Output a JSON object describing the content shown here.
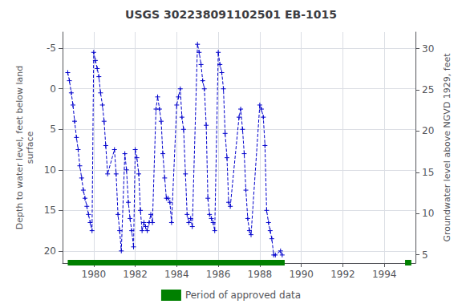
{
  "chart_data": {
    "type": "line",
    "title": "USGS 302238091102501 EB-1015",
    "ylabel": "Depth to water level, feet below land\nsurface",
    "y2label": "Groundwater level above NGVD 1929, feet",
    "xlim": [
      1978.5,
      1995.5
    ],
    "ylim": [
      21.5,
      -7.0
    ],
    "y2lim": [
      4.0,
      32.0
    ],
    "xticks": [
      1980,
      1982,
      1984,
      1986,
      1988,
      1990,
      1992,
      1994
    ],
    "yticks": [
      -5,
      0,
      5,
      10,
      15,
      20
    ],
    "y2ticks": [
      5,
      10,
      15,
      20,
      25,
      30
    ],
    "grid": true,
    "legend": "bottom",
    "x": [
      1978.75,
      1978.83,
      1978.92,
      1979.0,
      1979.08,
      1979.17,
      1979.25,
      1979.33,
      1979.42,
      1979.5,
      1979.58,
      1979.67,
      1979.75,
      1979.83,
      1979.92,
      1980.0,
      1980.08,
      1980.17,
      1980.25,
      1980.33,
      1980.42,
      1980.5,
      1980.58,
      1980.67,
      1981.0,
      1981.08,
      1981.17,
      1981.25,
      1981.33,
      1981.5,
      1981.58,
      1981.67,
      1981.75,
      1981.83,
      1981.92,
      1982.0,
      1982.08,
      1982.17,
      1982.25,
      1982.33,
      1982.42,
      1982.5,
      1982.58,
      1982.67,
      1982.75,
      1982.83,
      1983.0,
      1983.08,
      1983.17,
      1983.25,
      1983.33,
      1983.42,
      1983.5,
      1983.58,
      1983.67,
      1983.75,
      1984.0,
      1984.08,
      1984.17,
      1984.25,
      1984.33,
      1984.42,
      1984.5,
      1984.58,
      1984.67,
      1984.75,
      1985.0,
      1985.08,
      1985.17,
      1985.25,
      1985.33,
      1985.42,
      1985.5,
      1985.58,
      1985.67,
      1985.75,
      1985.83,
      1986.0,
      1986.08,
      1986.17,
      1986.25,
      1986.33,
      1986.42,
      1986.5,
      1986.58,
      1987.0,
      1987.08,
      1987.17,
      1987.25,
      1987.33,
      1987.42,
      1987.5,
      1987.58,
      1988.0,
      1988.08,
      1988.17,
      1988.25,
      1988.33,
      1988.42,
      1988.5,
      1988.58,
      1988.67,
      1988.75,
      1989.0,
      1989.08
    ],
    "series": [
      {
        "color": "#0000cc",
        "marker": "+",
        "line_style": "dashed",
        "values": [
          -2.0,
          -1.0,
          0.5,
          2.0,
          4.0,
          6.0,
          7.5,
          9.5,
          11.0,
          12.5,
          13.5,
          14.5,
          15.5,
          16.5,
          17.5,
          -4.5,
          -3.5,
          -2.5,
          -1.5,
          0.5,
          2.0,
          4.0,
          7.0,
          10.5,
          7.5,
          10.5,
          15.5,
          17.5,
          20.0,
          8.0,
          10.0,
          14.0,
          16.0,
          17.5,
          19.5,
          7.5,
          8.5,
          10.5,
          15.0,
          17.5,
          16.5,
          17.0,
          17.5,
          16.5,
          15.5,
          16.5,
          2.5,
          1.0,
          2.5,
          4.0,
          8.0,
          11.0,
          13.5,
          13.5,
          14.0,
          16.5,
          2.0,
          1.0,
          0.0,
          3.5,
          5.0,
          10.5,
          15.5,
          16.5,
          16.0,
          17.0,
          -5.5,
          -4.5,
          -3.0,
          -1.0,
          0.0,
          4.5,
          13.5,
          15.5,
          16.0,
          16.5,
          17.5,
          -4.5,
          -3.0,
          -2.0,
          0.0,
          5.5,
          8.5,
          14.0,
          14.5,
          3.5,
          2.5,
          5.0,
          8.0,
          12.5,
          16.0,
          17.5,
          18.0,
          2.0,
          2.5,
          3.5,
          7.0,
          15.0,
          16.5,
          17.5,
          18.5,
          20.5,
          20.5,
          20.0,
          20.5
        ]
      }
    ],
    "periods": {
      "name": "Period of approved data",
      "color": "#008000",
      "ranges": [
        [
          1978.75,
          1989.2
        ],
        [
          1995.0,
          1995.3
        ]
      ]
    }
  }
}
